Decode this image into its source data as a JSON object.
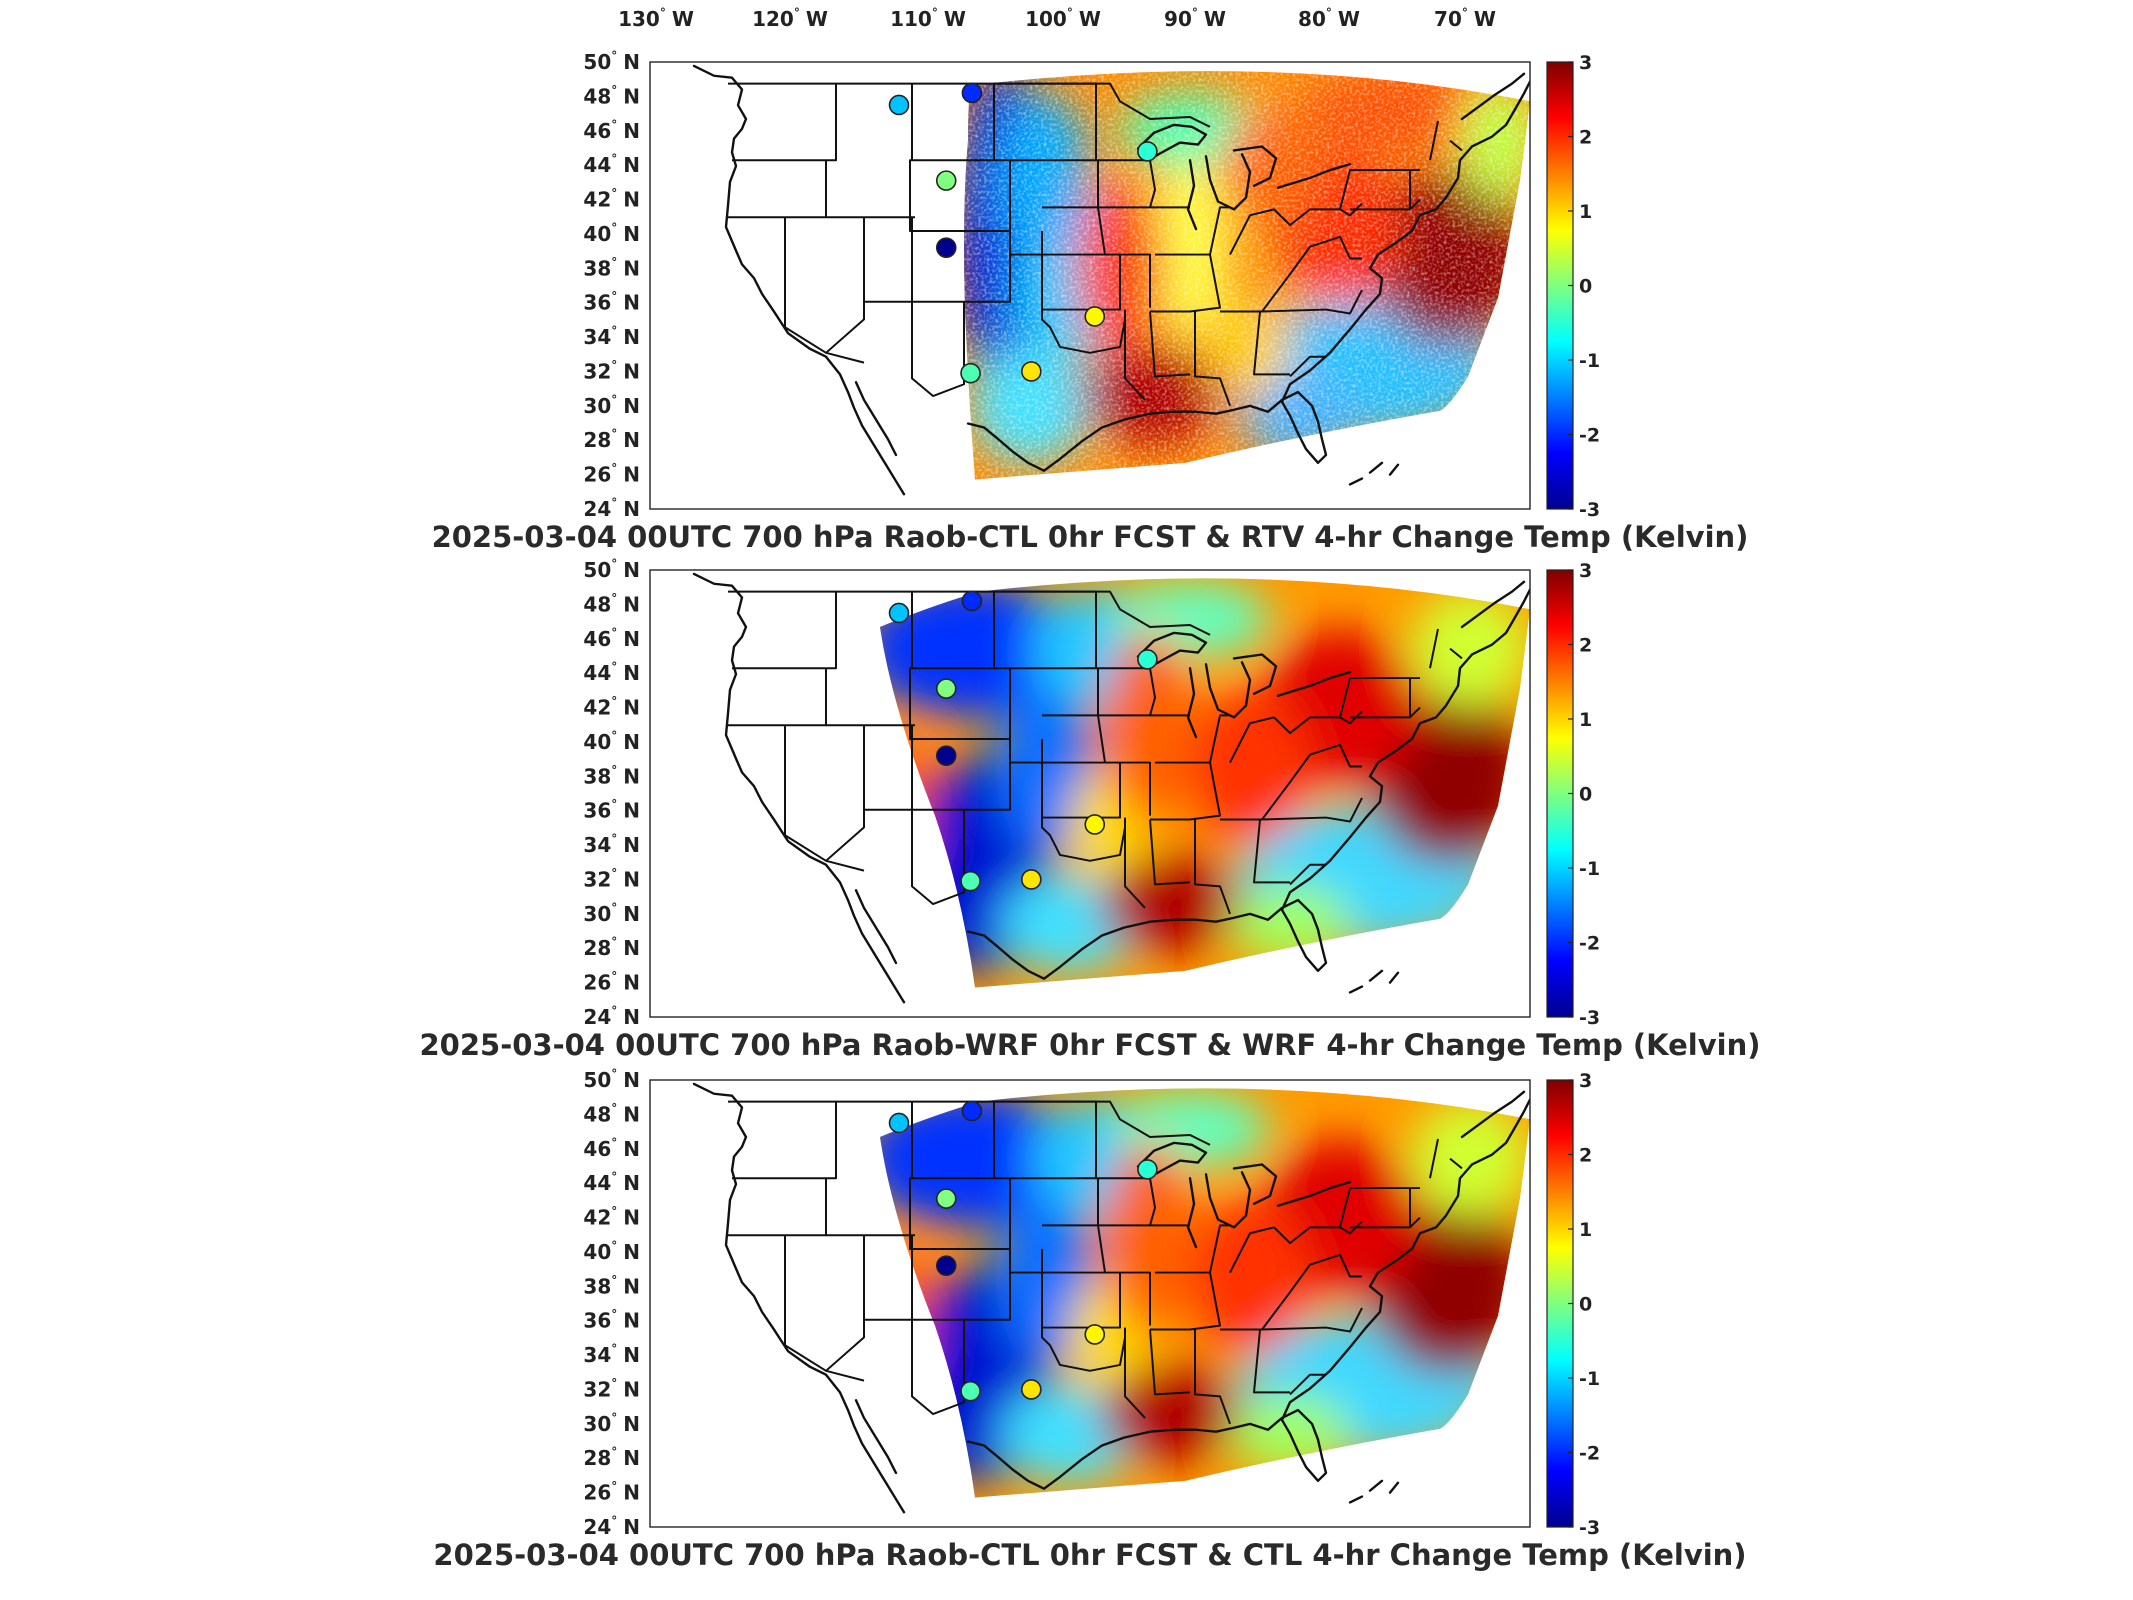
{
  "map": {
    "lon_ticks": [
      {
        "deg": "130",
        "hem": "W"
      },
      {
        "deg": "120",
        "hem": "W"
      },
      {
        "deg": "110",
        "hem": "W"
      },
      {
        "deg": "100",
        "hem": "W"
      },
      {
        "deg": "90",
        "hem": "W"
      },
      {
        "deg": "80",
        "hem": "W"
      },
      {
        "deg": "70",
        "hem": "W"
      }
    ],
    "lat_ticks": [
      {
        "deg": "50",
        "hem": "N"
      },
      {
        "deg": "48",
        "hem": "N"
      },
      {
        "deg": "46",
        "hem": "N"
      },
      {
        "deg": "44",
        "hem": "N"
      },
      {
        "deg": "42",
        "hem": "N"
      },
      {
        "deg": "40",
        "hem": "N"
      },
      {
        "deg": "38",
        "hem": "N"
      },
      {
        "deg": "36",
        "hem": "N"
      },
      {
        "deg": "34",
        "hem": "N"
      },
      {
        "deg": "32",
        "hem": "N"
      },
      {
        "deg": "30",
        "hem": "N"
      },
      {
        "deg": "28",
        "hem": "N"
      },
      {
        "deg": "26",
        "hem": "N"
      },
      {
        "deg": "24",
        "hem": "N"
      }
    ],
    "colorbar": {
      "ticks": [
        "3",
        "2",
        "1",
        "0",
        "-1",
        "-2",
        "-3"
      ],
      "range": [
        -3,
        3
      ],
      "colormap": "jet",
      "colors": [
        "#00008f",
        "#0000ff",
        "#00ffff",
        "#ffff00",
        "#ff0000",
        "#800000"
      ]
    },
    "station_colors": {
      "-3": "#00008f",
      "-2": "#0040ff",
      "-1": "#00c0ff",
      "0": "#60ff90",
      "1": "#ffff30"
    },
    "panels": [
      {
        "title": "2025-03-04 00UTC 700 hPa Raob-CTL 0hr FCST & RTV 4-hr Change Temp (Kelvin)",
        "stations": [
          {
            "lon": -112.0,
            "lat": 47.5,
            "value": -1.1
          },
          {
            "lon": -106.6,
            "lat": 48.2,
            "value": -2.0
          },
          {
            "lon": -108.5,
            "lat": 43.1,
            "value": 0.0
          },
          {
            "lon": -108.5,
            "lat": 39.2,
            "value": -3.0
          },
          {
            "lon": -106.7,
            "lat": 31.9,
            "value": -0.3
          },
          {
            "lon": -102.2,
            "lat": 32.0,
            "value": 0.9
          },
          {
            "lon": -97.5,
            "lat": 35.2,
            "value": 0.8
          },
          {
            "lon": -93.6,
            "lat": 44.8,
            "value": -0.5
          }
        ]
      },
      {
        "title": "2025-03-04 00UTC 700 hPa Raob-WRF 0hr FCST & WRF 4-hr Change Temp (Kelvin)",
        "stations": [
          {
            "lon": -112.0,
            "lat": 47.5,
            "value": -1.1
          },
          {
            "lon": -106.6,
            "lat": 48.2,
            "value": -2.0
          },
          {
            "lon": -108.5,
            "lat": 43.1,
            "value": 0.0
          },
          {
            "lon": -108.5,
            "lat": 39.2,
            "value": -3.0
          },
          {
            "lon": -106.7,
            "lat": 31.9,
            "value": -0.3
          },
          {
            "lon": -102.2,
            "lat": 32.0,
            "value": 0.9
          },
          {
            "lon": -97.5,
            "lat": 35.2,
            "value": 0.8
          },
          {
            "lon": -93.6,
            "lat": 44.8,
            "value": -0.5
          }
        ]
      },
      {
        "title": "2025-03-04 00UTC 700 hPa Raob-CTL 0hr FCST & CTL 4-hr Change Temp (Kelvin)",
        "stations": [
          {
            "lon": -112.0,
            "lat": 47.5,
            "value": -1.1
          },
          {
            "lon": -106.6,
            "lat": 48.2,
            "value": -2.0
          },
          {
            "lon": -108.5,
            "lat": 43.1,
            "value": 0.0
          },
          {
            "lon": -108.5,
            "lat": 39.2,
            "value": -3.0
          },
          {
            "lon": -106.7,
            "lat": 31.9,
            "value": -0.3
          },
          {
            "lon": -102.2,
            "lat": 32.0,
            "value": 0.9
          },
          {
            "lon": -97.5,
            "lat": 35.2,
            "value": 0.8
          },
          {
            "lon": -93.6,
            "lat": 44.8,
            "value": -0.5
          }
        ]
      }
    ]
  }
}
